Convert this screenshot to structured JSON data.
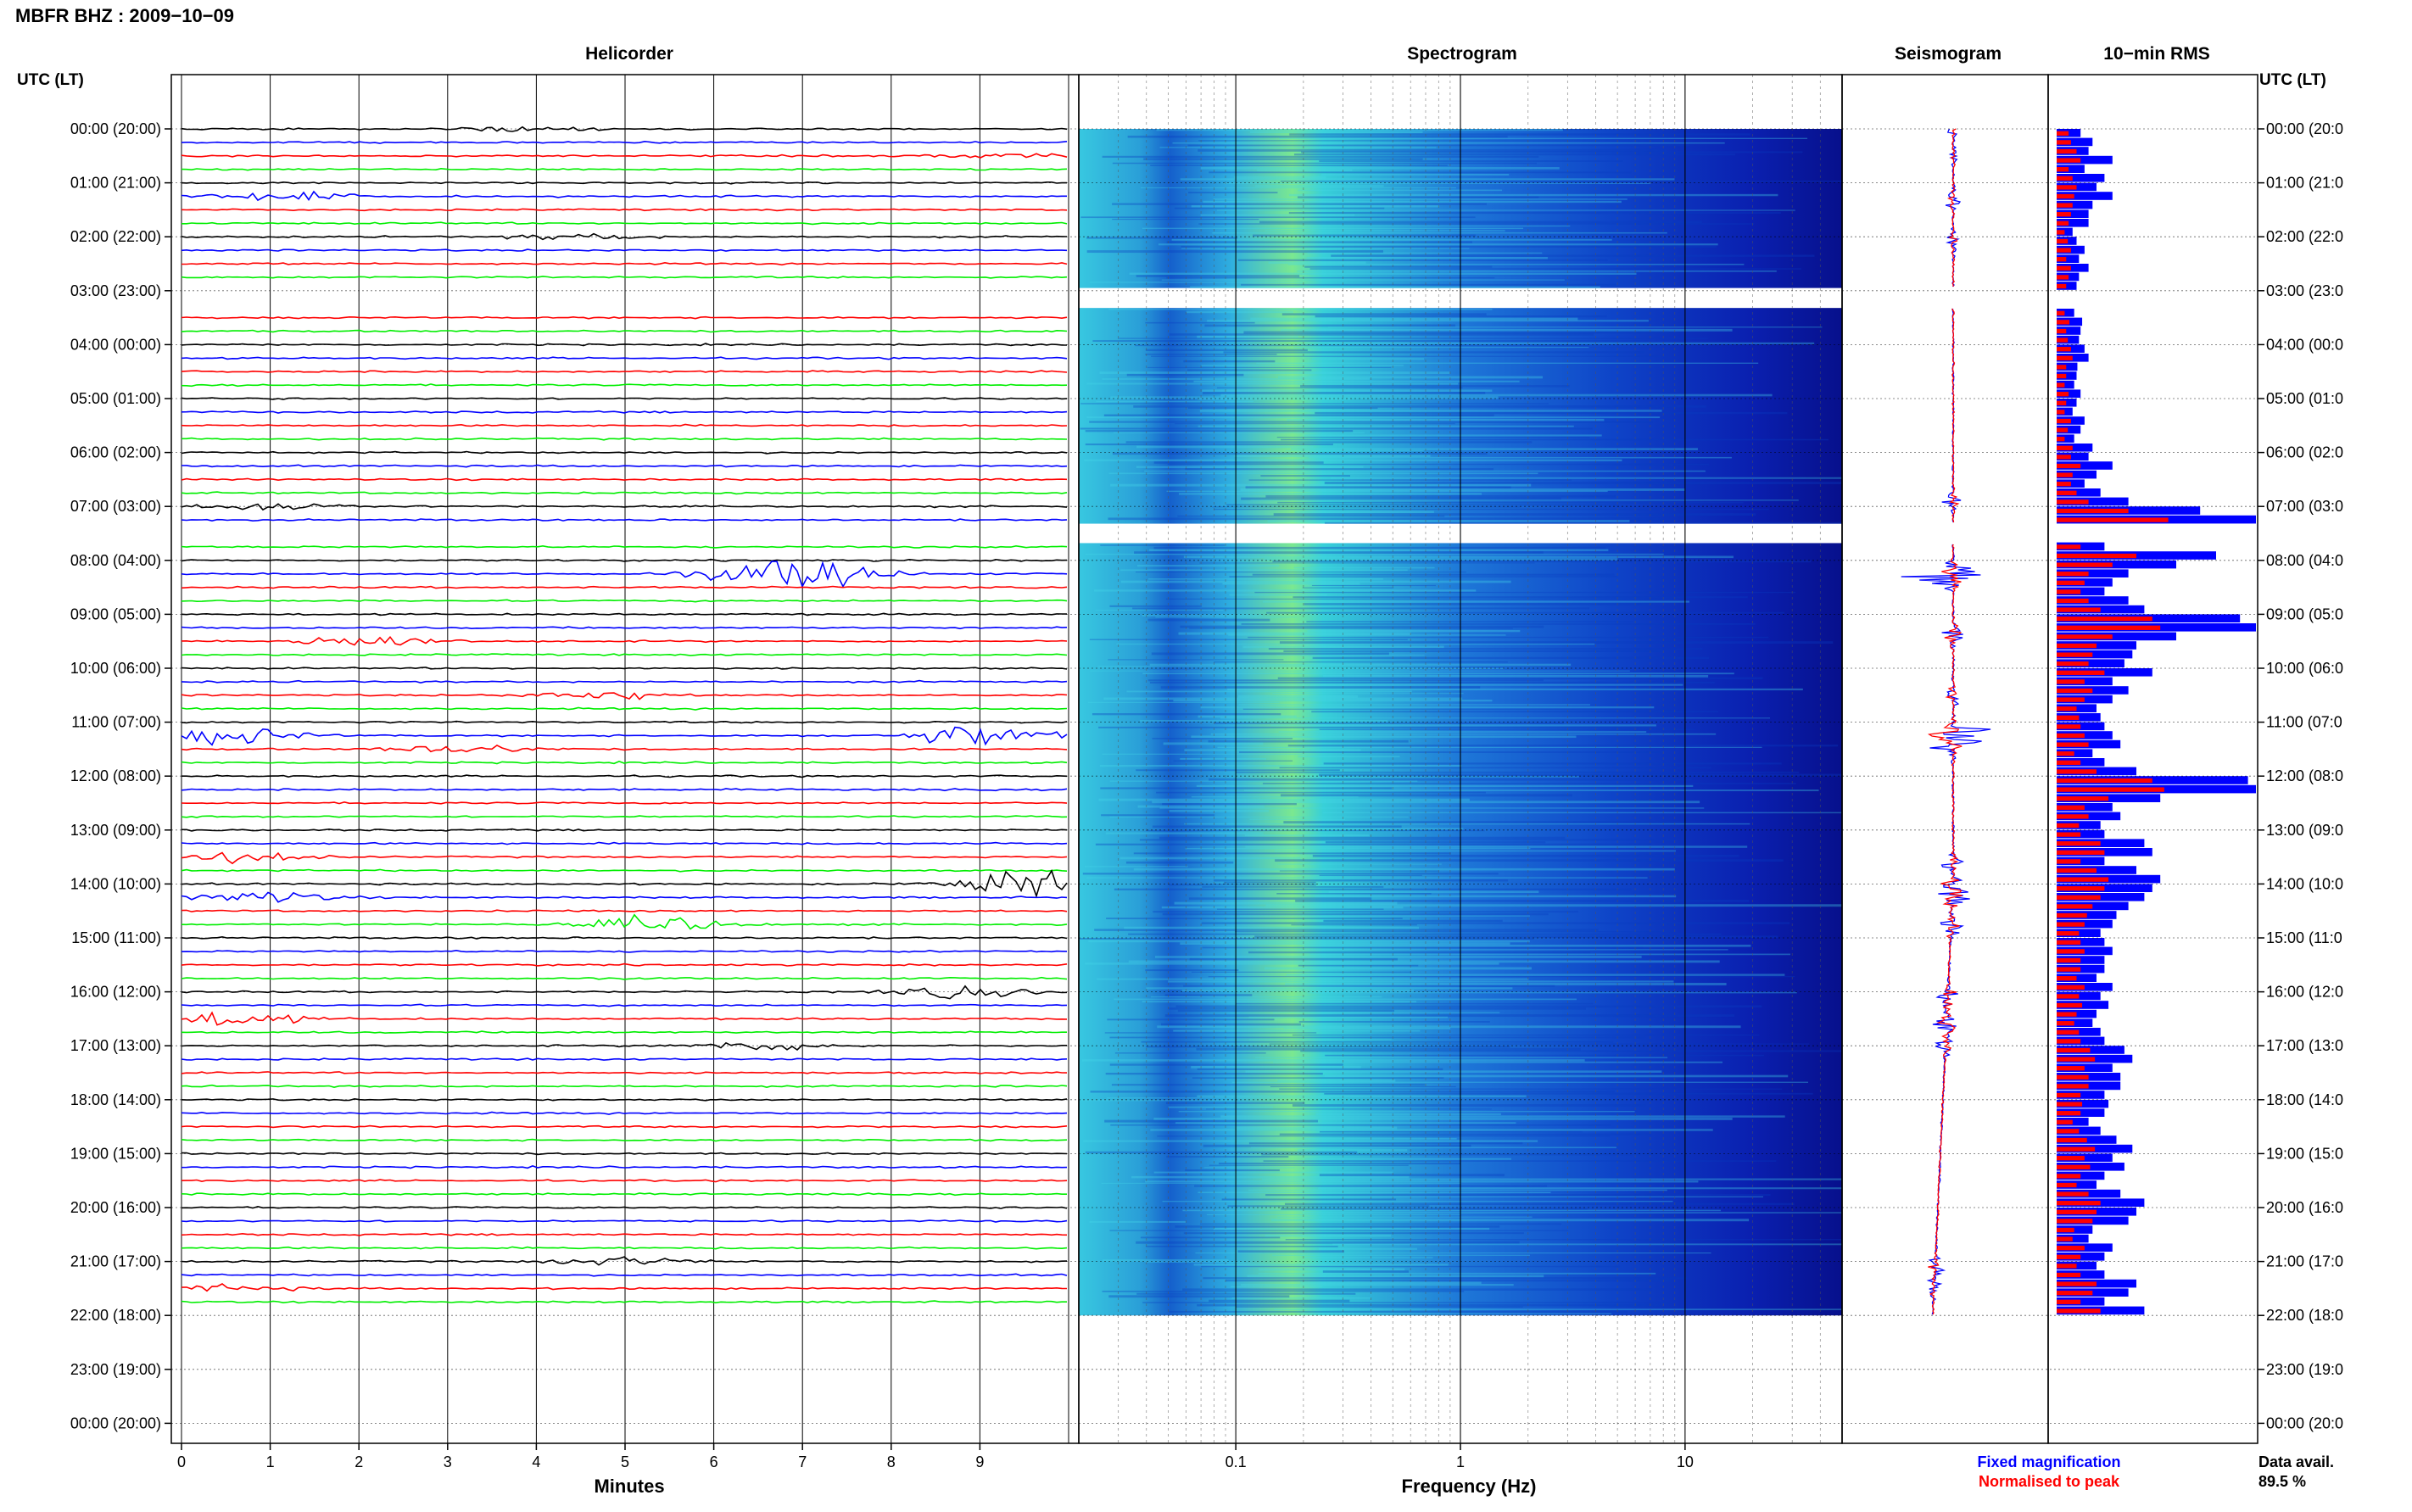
{
  "page": {
    "title": "MBFR BHZ : 2009−10−09",
    "utc_label": "UTC (LT)",
    "panels": {
      "helicorder": "Helicorder",
      "spectrogram": "Spectrogram",
      "seismogram": "Seismogram",
      "rms": "10−min RMS"
    },
    "xlabels": {
      "helicorder": "Minutes",
      "spectrogram": "Frequency (Hz)"
    },
    "legend": {
      "fixed": "Fixed magnification",
      "normalised": "Normalised to peak",
      "fixed_color": "#0000ff",
      "normalised_color": "#ff0000"
    },
    "data_avail": {
      "label": "Data avail.",
      "value": "89.5 %"
    }
  },
  "chart_data": {
    "type": "helicorder",
    "station": "MBFR",
    "channel": "BHZ",
    "date": "2009-10-09",
    "hour_ticks_left": [
      "00:00 (20:00)",
      "01:00 (21:00)",
      "02:00 (22:00)",
      "03:00 (23:00)",
      "04:00 (00:00)",
      "05:00 (01:00)",
      "06:00 (02:00)",
      "07:00 (03:00)",
      "08:00 (04:00)",
      "09:00 (05:00)",
      "10:00 (06:00)",
      "11:00 (07:00)",
      "12:00 (08:00)",
      "13:00 (09:00)",
      "14:00 (10:00)",
      "15:00 (11:00)",
      "16:00 (12:00)",
      "17:00 (13:00)",
      "18:00 (14:00)",
      "19:00 (15:00)",
      "20:00 (16:00)",
      "21:00 (17:00)",
      "22:00 (18:00)",
      "23:00 (19:00)",
      "00:00 (20:00)"
    ],
    "hour_ticks_right": [
      "00:00 (20:0",
      "01:00 (21:0",
      "02:00 (22:0",
      "03:00 (23:0",
      "04:00 (00:0",
      "05:00 (01:0",
      "06:00 (02:0",
      "07:00 (03:0",
      "08:00 (04:0",
      "09:00 (05:0",
      "10:00 (06:0",
      "11:00 (07:0",
      "12:00 (08:0",
      "13:00 (09:0",
      "14:00 (10:0",
      "15:00 (11:0",
      "16:00 (12:0",
      "17:00 (13:0",
      "18:00 (14:0",
      "19:00 (15:0",
      "20:00 (16:0",
      "21:00 (17:0",
      "22:00 (18:0",
      "23:00 (19:0",
      "00:00 (20:0"
    ],
    "minutes_ticks": [
      "0",
      "1",
      "2",
      "3",
      "4",
      "5",
      "6",
      "7",
      "8",
      "9"
    ],
    "minutes_range": [
      0,
      10
    ],
    "freq_ticks": [
      "0.1",
      "1",
      "10"
    ],
    "freq_range_hz": [
      0.02,
      50
    ],
    "freq_log": true,
    "trace_colors": [
      "#000000",
      "#0000ff",
      "#ff0000",
      "#00ee00"
    ],
    "data_hours": [
      0,
      22
    ],
    "gaps_hours": [
      [
        2.95,
        3.32
      ],
      [
        7.32,
        7.68
      ]
    ],
    "events": [
      {
        "hour": 0.0,
        "minute": 4.0,
        "amp": 0.8
      },
      {
        "hour": 0.5,
        "minute": 9.3,
        "amp": 0.8
      },
      {
        "hour": 1.3,
        "minute": 1.2,
        "amp": 1.4
      },
      {
        "hour": 2.1,
        "minute": 4.5,
        "amp": 1.0
      },
      {
        "hour": 6.9,
        "minute": 1.0,
        "amp": 1.5
      },
      {
        "hour": 8.2,
        "minute": 6.2,
        "amp": 1.0
      },
      {
        "hour": 8.3,
        "minute": 7.1,
        "amp": 5.5
      },
      {
        "hour": 9.4,
        "minute": 2.1,
        "amp": 2.4
      },
      {
        "hour": 10.5,
        "minute": 4.8,
        "amp": 1.6
      },
      {
        "hour": 11.2,
        "minute": 9.0,
        "amp": 4.0
      },
      {
        "hour": 11.3,
        "minute": 0.6,
        "amp": 3.0
      },
      {
        "hour": 11.5,
        "minute": 3.2,
        "amp": 1.4
      },
      {
        "hour": 13.6,
        "minute": 0.6,
        "amp": 1.8
      },
      {
        "hour": 14.1,
        "minute": 9.5,
        "amp": 4.5
      },
      {
        "hour": 14.3,
        "minute": 0.9,
        "amp": 2.0
      },
      {
        "hour": 14.8,
        "minute": 5.4,
        "amp": 2.6
      },
      {
        "hour": 16.1,
        "minute": 8.9,
        "amp": 2.2
      },
      {
        "hour": 16.6,
        "minute": 0.6,
        "amp": 2.4
      },
      {
        "hour": 17.0,
        "minute": 6.5,
        "amp": 1.6
      },
      {
        "hour": 21.1,
        "minute": 4.9,
        "amp": 1.4
      },
      {
        "hour": 21.5,
        "minute": 0.5,
        "amp": 1.2
      }
    ],
    "rms_blue": [
      30,
      45,
      40,
      70,
      35,
      60,
      50,
      70,
      45,
      40,
      40,
      20,
      25,
      35,
      28,
      40,
      28,
      25,
      35,
      40,
      22,
      32,
      30,
      28,
      35,
      40,
      26,
      25,
      22,
      30,
      25,
      20,
      35,
      30,
      22,
      45,
      40,
      70,
      50,
      35,
      55,
      90,
      180,
      250,
      100,
      80,
      60,
      200,
      150,
      90,
      70,
      60,
      90,
      110,
      230,
      250,
      150,
      100,
      95,
      85,
      120,
      70,
      90,
      70,
      50,
      55,
      60,
      70,
      80,
      45,
      60,
      100,
      240,
      250,
      130,
      70,
      80,
      55,
      60,
      110,
      120,
      60,
      100,
      130,
      120,
      110,
      90,
      75,
      70,
      55,
      60,
      70,
      60,
      60,
      50,
      70,
      55,
      65,
      50,
      45,
      55,
      60,
      85,
      95,
      70,
      80,
      80,
      60,
      65,
      60,
      40,
      55,
      75,
      95,
      70,
      85,
      60,
      50,
      80,
      110,
      100,
      90,
      45,
      40,
      70,
      60,
      50,
      60,
      100,
      90,
      60,
      110,
      90,
      55,
      50,
      60,
      80,
      55,
      40
    ],
    "rms_red": [
      15,
      18,
      25,
      30,
      15,
      20,
      25,
      22,
      20,
      18,
      15,
      10,
      14,
      18,
      12,
      18,
      15,
      12,
      18,
      22,
      10,
      16,
      12,
      14,
      18,
      20,
      12,
      12,
      10,
      15,
      12,
      10,
      18,
      14,
      10,
      20,
      18,
      30,
      20,
      18,
      25,
      40,
      90,
      140,
      50,
      40,
      30,
      100,
      70,
      40,
      35,
      30,
      40,
      55,
      120,
      130,
      70,
      50,
      45,
      40,
      60,
      35,
      45,
      35,
      25,
      28,
      30,
      35,
      40,
      22,
      30,
      50,
      120,
      135,
      65,
      35,
      40,
      28,
      30,
      55,
      60,
      30,
      50,
      65,
      60,
      55,
      45,
      38,
      35,
      28,
      30,
      35,
      30,
      30,
      25,
      35,
      28,
      32,
      25,
      22,
      28,
      30,
      42,
      48,
      35,
      40,
      40,
      30,
      32,
      30,
      20,
      28,
      38,
      48,
      35,
      42,
      30,
      25,
      40,
      55,
      50,
      45,
      22,
      20,
      35,
      30,
      25,
      30,
      50,
      45,
      30,
      55,
      45,
      28,
      25,
      30,
      40,
      28,
      20
    ]
  }
}
